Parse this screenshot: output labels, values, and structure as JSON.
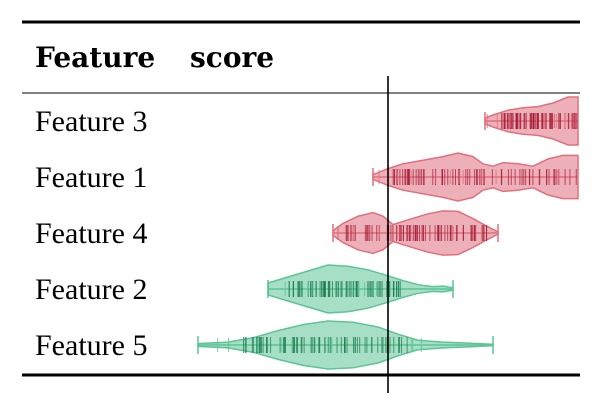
{
  "header": {
    "col_feature": "Feature",
    "col_score": "score"
  },
  "colors": {
    "positive": "#e0707e",
    "positive_dark": "#a31a35",
    "negative": "#5dc496",
    "negative_dark": "#17794c"
  },
  "chart_data": {
    "type": "violin",
    "title": "",
    "xlabel": "score",
    "reference_line": 0,
    "xlim": [
      -1.9,
      1.9
    ],
    "grid": false,
    "legend": "none",
    "rows": [
      {
        "label": "Feature 3",
        "color": "positive",
        "min": 0.97,
        "max": 1.9,
        "profile": [
          [
            0.97,
            0.12
          ],
          [
            1.05,
            0.25
          ],
          [
            1.2,
            0.45
          ],
          [
            1.35,
            0.55
          ],
          [
            1.5,
            0.6
          ],
          [
            1.65,
            0.75
          ],
          [
            1.8,
            1.0
          ],
          [
            1.9,
            1.0
          ]
        ],
        "dense": [
          1.1,
          1.9
        ]
      },
      {
        "label": "Feature 1",
        "color": "positive",
        "min": -0.15,
        "max": 1.9,
        "profile": [
          [
            -0.15,
            0.1
          ],
          [
            0.0,
            0.35
          ],
          [
            0.15,
            0.55
          ],
          [
            0.35,
            0.7
          ],
          [
            0.55,
            0.85
          ],
          [
            0.7,
            1.0
          ],
          [
            0.85,
            0.85
          ],
          [
            0.95,
            0.55
          ],
          [
            1.05,
            0.45
          ],
          [
            1.15,
            0.6
          ],
          [
            1.3,
            0.55
          ],
          [
            1.45,
            0.45
          ],
          [
            1.6,
            0.75
          ],
          [
            1.75,
            0.9
          ],
          [
            1.9,
            0.9
          ]
        ],
        "dense": [
          0.05,
          1.9
        ]
      },
      {
        "label": "Feature 4",
        "color": "positive",
        "min": -0.55,
        "max": 1.1,
        "profile": [
          [
            -0.55,
            0.1
          ],
          [
            -0.45,
            0.4
          ],
          [
            -0.3,
            0.7
          ],
          [
            -0.15,
            0.85
          ],
          [
            -0.05,
            0.7
          ],
          [
            0.05,
            0.35
          ],
          [
            0.2,
            0.55
          ],
          [
            0.4,
            0.8
          ],
          [
            0.55,
            0.92
          ],
          [
            0.7,
            0.9
          ],
          [
            0.85,
            0.6
          ],
          [
            0.98,
            0.3
          ],
          [
            1.1,
            0.05
          ]
        ],
        "dense": [
          -0.45,
          1.0
        ]
      },
      {
        "label": "Feature 2",
        "color": "negative",
        "min": -1.2,
        "max": 0.65,
        "profile": [
          [
            -1.2,
            0.25
          ],
          [
            -1.0,
            0.5
          ],
          [
            -0.8,
            0.75
          ],
          [
            -0.6,
            1.0
          ],
          [
            -0.4,
            0.95
          ],
          [
            -0.2,
            0.8
          ],
          [
            0.0,
            0.55
          ],
          [
            0.15,
            0.35
          ],
          [
            0.3,
            0.18
          ],
          [
            0.45,
            0.1
          ],
          [
            0.55,
            0.12
          ],
          [
            0.65,
            0.05
          ]
        ],
        "dense": [
          -1.05,
          0.15
        ]
      },
      {
        "label": "Feature 5",
        "color": "negative",
        "min": -1.9,
        "max": 1.05,
        "profile": [
          [
            -1.9,
            0.06
          ],
          [
            -1.6,
            0.12
          ],
          [
            -1.35,
            0.3
          ],
          [
            -1.1,
            0.6
          ],
          [
            -0.85,
            0.85
          ],
          [
            -0.6,
            1.0
          ],
          [
            -0.35,
            0.95
          ],
          [
            -0.1,
            0.75
          ],
          [
            0.1,
            0.45
          ],
          [
            0.3,
            0.2
          ],
          [
            0.55,
            0.12
          ],
          [
            0.8,
            0.08
          ],
          [
            1.05,
            0.03
          ]
        ],
        "dense": [
          -1.45,
          0.2
        ]
      }
    ]
  }
}
